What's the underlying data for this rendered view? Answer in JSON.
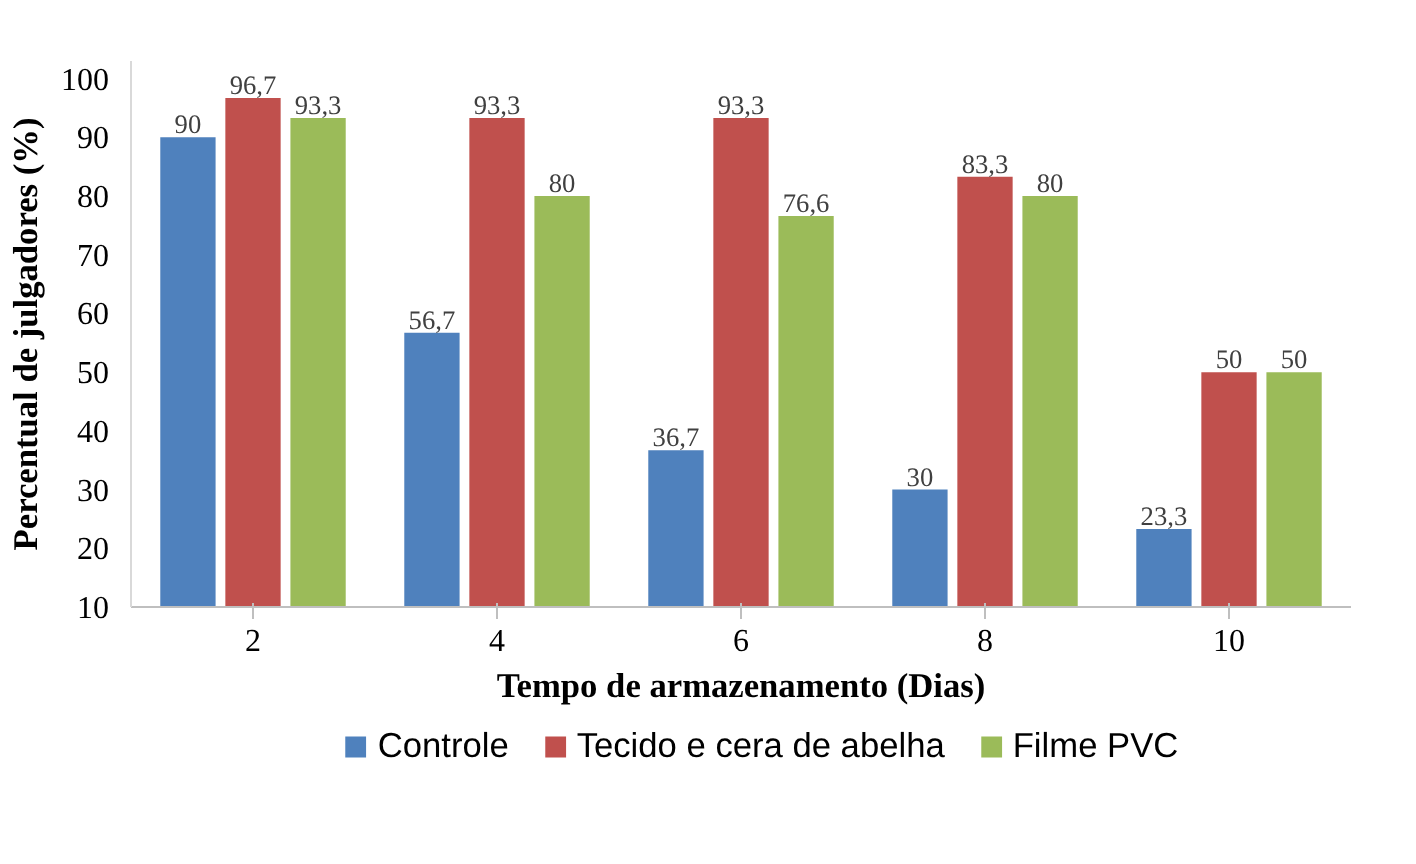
{
  "chart_data": {
    "type": "bar",
    "xlabel": "Tempo de armazenamento (Dias)",
    "ylabel": "Percentual de julgadores (%)",
    "categories": [
      "2",
      "4",
      "6",
      "8",
      "10"
    ],
    "series": [
      {
        "name": "Controle",
        "color": "#4f81bd",
        "values": [
          90,
          56.7,
          36.7,
          30,
          23.3
        ],
        "value_labels": [
          "90",
          "56,7",
          "36,7",
          "30",
          "23,3"
        ]
      },
      {
        "name": "Tecido e cera de abelha",
        "color": "#c0504d",
        "values": [
          96.7,
          93.3,
          93.3,
          83.3,
          50
        ],
        "value_labels": [
          "96,7",
          "93,3",
          "93,3",
          "83,3",
          "50"
        ]
      },
      {
        "name": "Filme PVC",
        "color": "#9bbb59",
        "values": [
          93.3,
          80,
          76.6,
          80,
          50
        ],
        "value_labels": [
          "93,3",
          "80",
          "76,6",
          "80",
          "50"
        ]
      }
    ],
    "ylim": [
      10,
      103
    ],
    "yticks": [
      10,
      20,
      30,
      40,
      50,
      60,
      70,
      80,
      90,
      100
    ],
    "data_labels": false,
    "grid": false,
    "legend": "bottom"
  }
}
